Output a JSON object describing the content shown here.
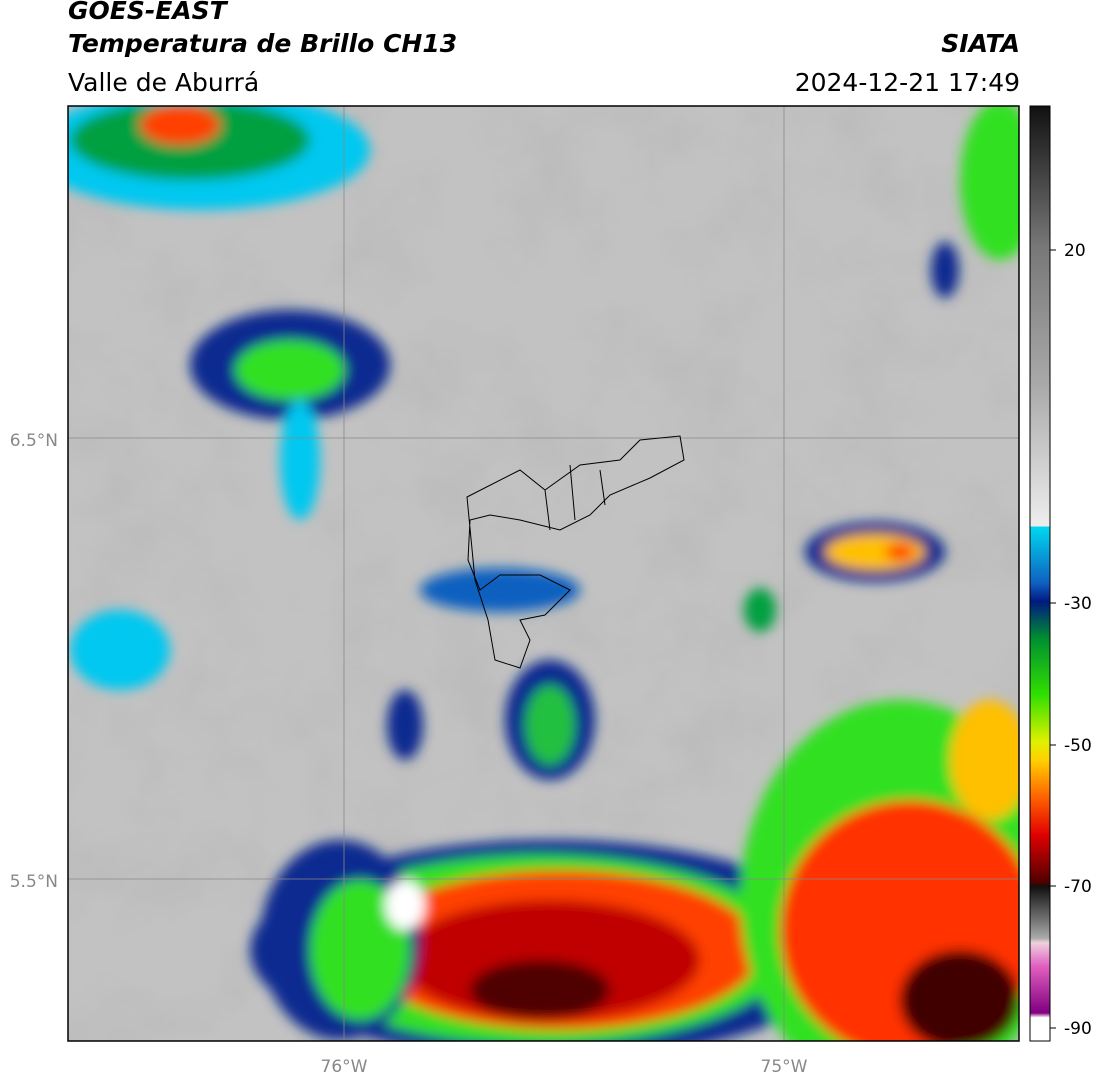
{
  "header": {
    "title": "GOES-EAST",
    "subtitle": "Temperatura de Brillo CH13",
    "region": "Valle de Aburrá",
    "source": "SIATA",
    "datetime": "2024-12-21 17:49"
  },
  "map": {
    "lat_labels": [
      "6.5°N",
      "5.5°N"
    ],
    "lon_labels": [
      "76°W",
      "75°W"
    ]
  },
  "colorbar": {
    "ticks": [
      "20",
      "-30",
      "-50",
      "-70",
      "-90"
    ]
  }
}
